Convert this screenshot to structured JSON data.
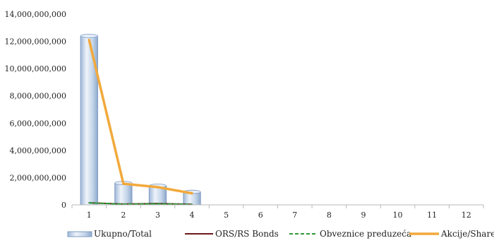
{
  "chart_data": {
    "type": "bar",
    "title": "",
    "xlabel": "",
    "ylabel": "",
    "categories": [
      "1",
      "2",
      "3",
      "4",
      "5",
      "6",
      "7",
      "8",
      "9",
      "10",
      "11",
      "12"
    ],
    "ylim": [
      0,
      14000000000
    ],
    "y_ticks": [
      0,
      2000000000,
      4000000000,
      6000000000,
      8000000000,
      10000000000,
      12000000000,
      14000000000
    ],
    "y_tick_labels": [
      "0",
      "2,000,000,000",
      "4,000,000,000",
      "6,000,000,000",
      "8,000,000,000",
      "10,000,000,000",
      "12,000,000,000",
      "14,000,000,000"
    ],
    "grid": false,
    "legend_position": "bottom",
    "series": [
      {
        "name": "Ukupno/Total",
        "kind": "bar",
        "color": "#c5d6ea",
        "values": [
          12400000000,
          1600000000,
          1400000000,
          950000000,
          null,
          null,
          null,
          null,
          null,
          null,
          null,
          null
        ]
      },
      {
        "name": "ORS/RS Bonds",
        "kind": "line",
        "color": "#6b1a1a",
        "values": [
          150000000,
          60000000,
          100000000,
          40000000,
          null,
          null,
          null,
          null,
          null,
          null,
          null,
          null
        ]
      },
      {
        "name": "Obveznice preduzeća",
        "kind": "dashed-line",
        "color": "#2f9a3a",
        "values": [
          150000000,
          50000000,
          80000000,
          30000000,
          null,
          null,
          null,
          null,
          null,
          null,
          null,
          null
        ]
      },
      {
        "name": "Akcije/Shares",
        "kind": "line",
        "color": "#f2a93b",
        "values": [
          12100000000,
          1550000000,
          1300000000,
          850000000,
          null,
          null,
          null,
          null,
          null,
          null,
          null,
          null
        ]
      }
    ]
  }
}
